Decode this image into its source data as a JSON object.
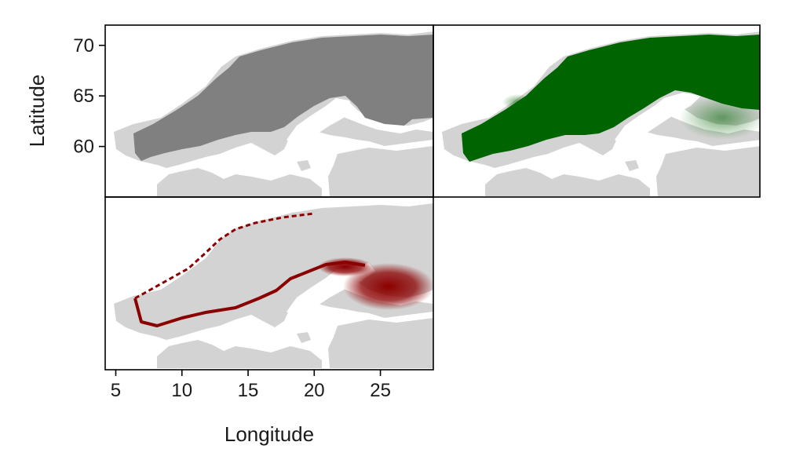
{
  "chart_data": {
    "type": "heatmap",
    "layout": "2x2 grid with shared axes, bottom-right panel empty",
    "xlabel": "Longitude",
    "ylabel": "Latitude",
    "xlim": [
      4.2,
      29.0
    ],
    "ylim": [
      55.0,
      72.0
    ],
    "xticks": [
      5,
      10,
      15,
      20,
      25
    ],
    "yticks": [
      60,
      65,
      70
    ],
    "background_color": "#d3d3d3",
    "panels": [
      {
        "position": "top-left",
        "fill_color": "#808080",
        "mode": "binary range"
      },
      {
        "position": "top-right",
        "fill_color": "#006400",
        "mode": "continuous intensity"
      },
      {
        "position": "bottom-left",
        "fill_color": "#8b0000",
        "mode": "range edge intensity"
      }
    ]
  }
}
